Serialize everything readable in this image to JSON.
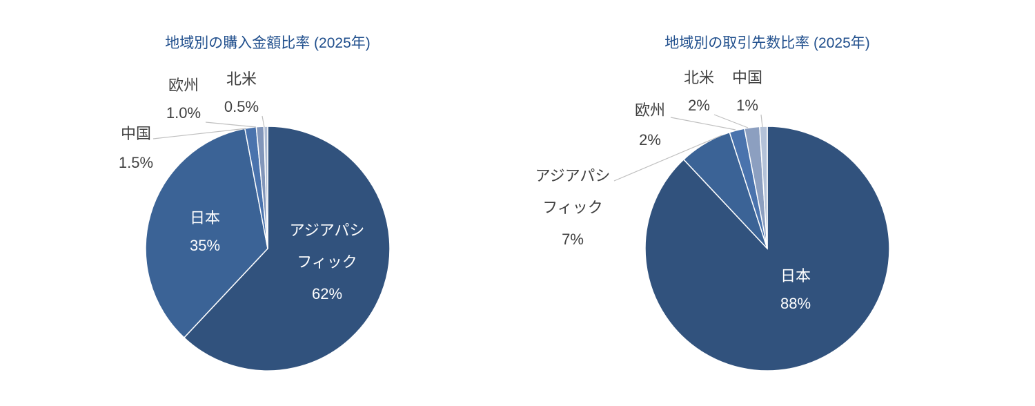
{
  "chart_data": [
    {
      "type": "pie",
      "title": "地域別の購入金額比率 (2025年)",
      "categories": [
        "アジアパシフィック",
        "日本",
        "中国",
        "欧州",
        "北米"
      ],
      "values": [
        62,
        35,
        1.5,
        1.0,
        0.5
      ],
      "value_labels": [
        "62%",
        "35%",
        "1.5%",
        "1.0%",
        "0.5%"
      ],
      "colors": [
        "#31527d",
        "#3b6396",
        "#4a73ad",
        "#8296ba",
        "#aebcd3"
      ]
    },
    {
      "type": "pie",
      "title": "地域別の取引先数比率 (2025年)",
      "categories": [
        "日本",
        "アジアパシフィック",
        "欧州",
        "北米",
        "中国"
      ],
      "values": [
        88,
        7,
        2,
        2,
        1
      ],
      "value_labels": [
        "88%",
        "7%",
        "2%",
        "2%",
        "1%"
      ],
      "colors": [
        "#31527d",
        "#3b6396",
        "#4a73ad",
        "#8c9fc0",
        "#b4c2d8"
      ]
    }
  ]
}
